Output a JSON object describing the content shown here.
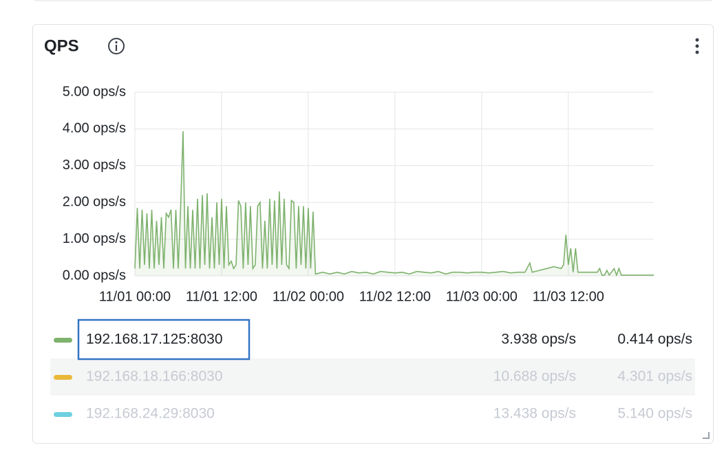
{
  "panel": {
    "title": "QPS"
  },
  "chart_data": {
    "type": "line",
    "x": [
      "11/01 00:00",
      "11/01 00:20",
      "11/01 00:40",
      "11/01 01:00",
      "11/01 01:20",
      "11/01 01:40",
      "11/01 02:00",
      "11/01 02:20",
      "11/01 02:40",
      "11/01 03:00",
      "11/01 03:20",
      "11/01 03:40",
      "11/01 04:00",
      "11/01 04:20",
      "11/01 04:40",
      "11/01 05:00",
      "11/01 05:20",
      "11/01 05:40",
      "11/01 06:00",
      "11/01 06:20",
      "11/01 06:40",
      "11/01 07:00",
      "11/01 07:20",
      "11/01 07:40",
      "11/01 08:00",
      "11/01 08:20",
      "11/01 08:40",
      "11/01 09:00",
      "11/01 09:20",
      "11/01 09:40",
      "11/01 10:00",
      "11/01 10:20",
      "11/01 10:40",
      "11/01 11:00",
      "11/01 11:20",
      "11/01 11:40",
      "11/01 12:00",
      "11/01 12:20",
      "11/01 12:40",
      "11/01 13:00",
      "11/01 13:20",
      "11/01 13:40",
      "11/01 14:00",
      "11/01 14:20",
      "11/01 14:40",
      "11/01 15:00",
      "11/01 15:20",
      "11/01 15:40",
      "11/01 16:00",
      "11/01 16:20",
      "11/01 16:40",
      "11/01 17:00",
      "11/01 17:20",
      "11/01 17:40",
      "11/01 18:00",
      "11/01 18:20",
      "11/01 18:40",
      "11/01 19:00",
      "11/01 19:20",
      "11/01 19:40",
      "11/01 20:00",
      "11/01 20:20",
      "11/01 20:40",
      "11/01 21:00",
      "11/01 21:20",
      "11/01 21:40",
      "11/01 22:00",
      "11/01 22:20",
      "11/01 22:40",
      "11/01 23:00",
      "11/01 23:20",
      "11/01 23:40",
      "11/02 00:00",
      "11/02 00:20",
      "11/02 00:40",
      "11/02 01:00",
      "11/02 02:00",
      "11/02 03:00",
      "11/02 04:00",
      "11/02 05:00",
      "11/02 06:00",
      "11/02 07:00",
      "11/02 08:00",
      "11/02 09:00",
      "11/02 10:00",
      "11/02 11:00",
      "11/02 12:00",
      "11/02 13:00",
      "11/02 14:00",
      "11/02 15:00",
      "11/02 16:00",
      "11/02 17:00",
      "11/02 18:00",
      "11/02 19:00",
      "11/02 20:00",
      "11/02 21:00",
      "11/02 22:00",
      "11/02 23:00",
      "11/03 00:00",
      "11/03 01:00",
      "11/03 02:00",
      "11/03 03:00",
      "11/03 04:00",
      "11/03 05:00",
      "11/03 06:00",
      "11/03 06:40",
      "11/03 07:00",
      "11/03 08:00",
      "11/03 09:00",
      "11/03 10:00",
      "11/03 11:00",
      "11/03 11:20",
      "11/03 11:40",
      "11/03 12:00",
      "11/03 12:20",
      "11/03 12:40",
      "11/03 13:00",
      "11/03 13:20",
      "11/03 14:00",
      "11/03 15:00",
      "11/03 16:00",
      "11/03 16:20",
      "11/03 16:40",
      "11/03 17:00",
      "11/03 17:20",
      "11/03 17:40",
      "11/03 18:20",
      "11/03 18:40",
      "11/03 19:00",
      "11/03 19:20",
      "11/03 20:00",
      "11/03 21:00",
      "11/03 22:00",
      "11/03 23:00",
      "11/03 23:50"
    ],
    "series": [
      {
        "name": "192.168.17.125:8030",
        "color": "#7eb26d",
        "stats": [
          "3.938 ops/s",
          "0.414 ops/s"
        ],
        "values": [
          0.2,
          1.85,
          0.2,
          1.8,
          0.3,
          1.7,
          0.2,
          1.8,
          0.2,
          1.5,
          0.3,
          1.6,
          0.2,
          1.7,
          1.6,
          1.8,
          0.2,
          1.8,
          0.2,
          1.9,
          3.94,
          0.2,
          1.9,
          0.2,
          1.8,
          0.2,
          2.1,
          0.2,
          2.2,
          0.3,
          2.25,
          0.2,
          1.6,
          0.2,
          2.0,
          0.3,
          2.1,
          0.2,
          1.9,
          0.3,
          0.4,
          0.2,
          0.3,
          2.05,
          1.9,
          0.2,
          2.0,
          0.3,
          1.9,
          0.2,
          0.3,
          1.9,
          2.0,
          0.2,
          1.5,
          0.2,
          2.1,
          0.3,
          2.05,
          0.2,
          2.3,
          0.3,
          2.1,
          0.3,
          0.2,
          2.05,
          2.0,
          0.2,
          1.9,
          0.3,
          1.9,
          0.2,
          1.85,
          0.2,
          1.75,
          0.05,
          0.1,
          0.05,
          0.1,
          0.05,
          0.12,
          0.08,
          0.1,
          0.05,
          0.12,
          0.1,
          0.08,
          0.1,
          0.05,
          0.12,
          0.1,
          0.08,
          0.12,
          0.05,
          0.1,
          0.1,
          0.08,
          0.1,
          0.1,
          0.08,
          0.1,
          0.12,
          0.08,
          0.1,
          0.1,
          0.35,
          0.1,
          0.15,
          0.2,
          0.25,
          0.2,
          0.3,
          1.12,
          0.3,
          0.75,
          0.1,
          0.75,
          0.1,
          0.1,
          0.1,
          0.1,
          0.2,
          0.02,
          0.02,
          0.15,
          0.02,
          0.2,
          0.02,
          0.2,
          0.02,
          0.02,
          0.02,
          0.02,
          0.02,
          0.02
        ]
      },
      {
        "name": "192.168.18.166:8030",
        "color": "#eab839",
        "hidden": true,
        "stats": [
          "10.688 ops/s",
          "4.301 ops/s"
        ]
      },
      {
        "name": "192.168.24.29:8030",
        "color": "#6ed0e0",
        "hidden": true,
        "stats": [
          "13.438 ops/s",
          "5.140 ops/s"
        ]
      }
    ],
    "xlim": [
      "11/01 00:00",
      "11/03 23:50"
    ],
    "xticks": [
      "11/01 00:00",
      "11/01 12:00",
      "11/02 00:00",
      "11/02 12:00",
      "11/03 00:00",
      "11/03 12:00"
    ],
    "ylim": [
      0,
      5
    ],
    "yticks": [
      {
        "value": 0,
        "label": "0.00 ops/s"
      },
      {
        "value": 1,
        "label": "1.00 ops/s"
      },
      {
        "value": 2,
        "label": "2.00 ops/s"
      },
      {
        "value": 3,
        "label": "3.00 ops/s"
      },
      {
        "value": 4,
        "label": "4.00 ops/s"
      },
      {
        "value": 5,
        "label": "5.00 ops/s"
      }
    ],
    "grid": true
  }
}
